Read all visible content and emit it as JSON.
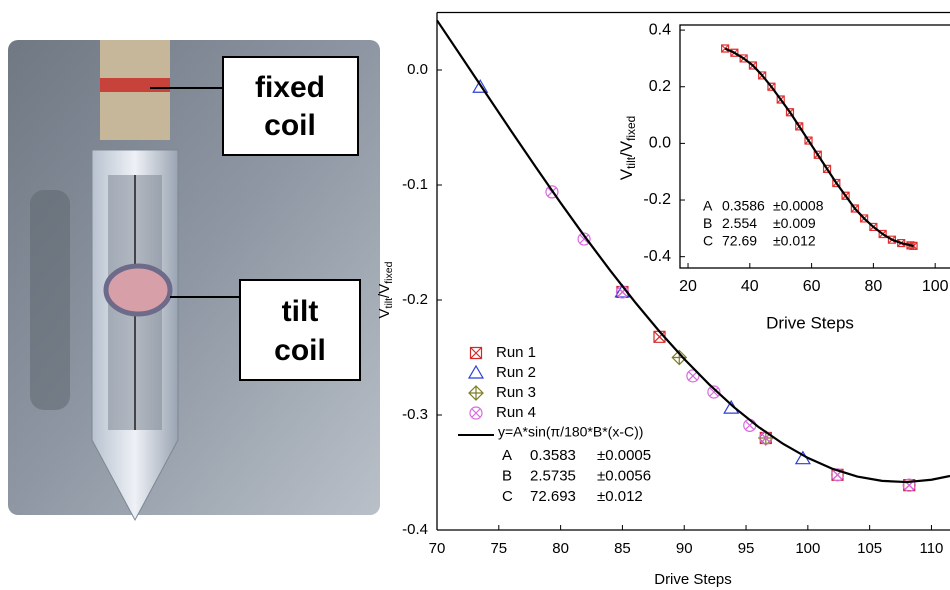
{
  "photo": {
    "labels": [
      [
        "fixed",
        "coil"
      ],
      [
        "tilt",
        "coil"
      ]
    ]
  },
  "chart_data": [
    {
      "type": "scatter",
      "xlabel": "Drive Steps",
      "ylabel": [
        "V",
        "tilt",
        "/V",
        "fixed"
      ],
      "xlim": [
        70,
        111.5
      ],
      "ylim": [
        -0.4,
        0.05
      ],
      "xticks": [
        70,
        75,
        80,
        85,
        90,
        95,
        100,
        105,
        110
      ],
      "yticks": [
        -0.4,
        -0.3,
        -0.2,
        -0.1,
        {
          "value": 0,
          "label": "0.0"
        }
      ],
      "legend": true,
      "series": [
        {
          "name": "Run 1",
          "color": "#d62828",
          "marker": "square-x",
          "x": [
            85,
            88,
            96.6,
            102.4,
            108.2
          ],
          "values": [
            -0.193,
            -0.232,
            -0.32,
            -0.352,
            -0.361
          ]
        },
        {
          "name": "Run 2",
          "color": "#2b3fd8",
          "marker": "triangle",
          "x": [
            73.5,
            85,
            93.8,
            99.6
          ],
          "values": [
            -0.015,
            -0.193,
            -0.294,
            -0.338
          ]
        },
        {
          "name": "Run 3",
          "color": "#7d7d24",
          "marker": "diamond-plus",
          "x": [
            89.6,
            96.6
          ],
          "values": [
            -0.25,
            -0.32
          ]
        },
        {
          "name": "Run 4",
          "color": "#d86ae0",
          "marker": "circle-x",
          "x": [
            79.3,
            81.9,
            85,
            90.7,
            92.4,
            95.3,
            96.6,
            102.4,
            108.2
          ],
          "values": [
            -0.106,
            -0.147,
            -0.193,
            -0.266,
            -0.28,
            -0.309,
            -0.32,
            -0.352,
            -0.361
          ]
        },
        {
          "name": "y=A*sin(π/180*B*(x-C))",
          "color": "#000000",
          "marker": "line",
          "x": [
            70,
            72,
            74,
            76,
            78,
            80,
            82,
            84,
            86,
            88,
            90,
            92,
            94,
            96,
            98,
            100,
            102,
            104,
            106,
            108,
            110,
            111.5
          ],
          "values": [
            0.0432,
            0.0112,
            -0.021,
            -0.053,
            -0.0846,
            -0.1155,
            -0.1455,
            -0.1742,
            -0.2016,
            -0.2274,
            -0.2513,
            -0.2732,
            -0.293,
            -0.3103,
            -0.3251,
            -0.3373,
            -0.3468,
            -0.3535,
            -0.3573,
            -0.3583,
            -0.3563,
            -0.353
          ]
        }
      ],
      "fit_params": [
        {
          "name": "A",
          "value": "0.3583",
          "error": "±0.0005"
        },
        {
          "name": "B",
          "value": "2.5735",
          "error": "±0.0056"
        },
        {
          "name": "C",
          "value": "72.693",
          "error": "±0.012"
        }
      ]
    },
    {
      "type": "scatter",
      "xlabel": "Drive Steps",
      "ylabel": [
        "V",
        "tilt",
        "/V",
        "fixed"
      ],
      "xlim": [
        17.4,
        104.8
      ],
      "ylim": [
        -0.44,
        0.418
      ],
      "xticks": [
        20,
        40,
        60,
        80,
        100
      ],
      "yticks": [
        -0.4,
        -0.2,
        {
          "value": 0,
          "label": "0.0"
        },
        0.2,
        0.4
      ],
      "series": [
        {
          "color": "#e03030",
          "marker": "small-x",
          "x": [
            32,
            35,
            38,
            41,
            44,
            47,
            50,
            53,
            56,
            59,
            62,
            65,
            68,
            71,
            74,
            77,
            80,
            83,
            86,
            89,
            92,
            93
          ],
          "values": [
            0.335,
            0.32,
            0.3,
            0.275,
            0.24,
            0.2,
            0.155,
            0.11,
            0.06,
            0.01,
            -0.04,
            -0.09,
            -0.14,
            -0.185,
            -0.23,
            -0.265,
            -0.295,
            -0.32,
            -0.34,
            -0.352,
            -0.36,
            -0.362
          ]
        },
        {
          "color": "#000000",
          "marker": "line",
          "x": [
            32,
            35,
            38,
            41,
            44,
            47,
            50,
            53,
            56,
            59,
            62,
            65,
            68,
            71,
            74,
            77,
            80,
            83,
            86,
            89,
            92,
            93
          ],
          "values": [
            0.335,
            0.32,
            0.3,
            0.275,
            0.24,
            0.2,
            0.155,
            0.11,
            0.06,
            0.01,
            -0.04,
            -0.09,
            -0.14,
            -0.185,
            -0.23,
            -0.265,
            -0.295,
            -0.32,
            -0.34,
            -0.352,
            -0.36,
            -0.362
          ]
        }
      ],
      "fit_params": [
        {
          "name": "A",
          "value": "0.3586",
          "error": "±0.0008"
        },
        {
          "name": "B",
          "value": "2.554",
          "error": "±0.009"
        },
        {
          "name": "C",
          "value": "72.69",
          "error": "±0.012"
        }
      ]
    }
  ]
}
